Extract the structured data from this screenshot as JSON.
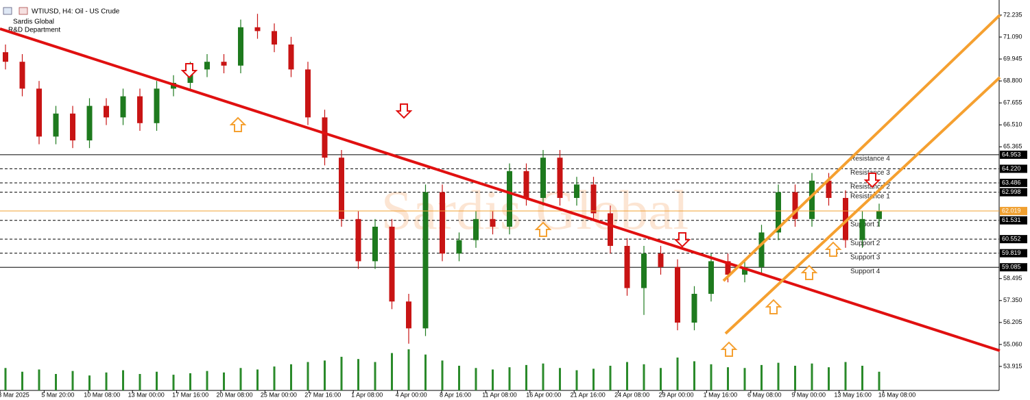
{
  "header": {
    "title": "WTIUSD, H4:  Oil - US Crude",
    "company": "Sardis Global",
    "department": "R&D Department",
    "watermark": "Sardis Global"
  },
  "chart_data": {
    "type": "candlestick",
    "open": [
      70.3,
      69.8,
      68.4,
      65.9,
      67.1,
      65.7,
      67.5,
      66.9,
      68.0,
      66.6,
      68.4,
      68.7,
      69.4,
      69.8,
      69.6,
      71.6,
      71.4,
      70.7,
      69.4,
      66.9,
      64.8,
      61.6,
      59.4,
      61.2,
      57.3,
      55.9,
      63.0,
      59.8,
      60.5,
      61.6,
      61.2,
      64.1,
      62.7,
      64.8,
      62.7,
      63.4,
      61.9,
      60.2,
      58.0,
      59.8,
      59.1,
      56.2,
      57.7,
      59.4,
      58.7,
      59.1,
      60.9,
      63.0,
      61.6,
      63.6,
      62.7,
      60.5,
      61.6
    ],
    "high": [
      70.7,
      70.2,
      68.8,
      67.5,
      67.5,
      67.9,
      67.9,
      68.4,
      68.4,
      68.8,
      69.1,
      69.8,
      70.2,
      70.2,
      72.0,
      72.3,
      71.8,
      71.1,
      69.8,
      67.3,
      65.2,
      62.0,
      61.6,
      61.6,
      57.7,
      63.4,
      63.4,
      60.9,
      62.0,
      62.0,
      64.5,
      64.5,
      65.2,
      65.2,
      63.8,
      63.8,
      62.3,
      60.6,
      60.2,
      60.2,
      59.5,
      58.1,
      59.8,
      59.8,
      59.5,
      61.3,
      63.4,
      63.4,
      64.0,
      64.0,
      63.1,
      62.0,
      62.4
    ],
    "low": [
      69.4,
      68.0,
      65.5,
      65.5,
      65.3,
      65.3,
      66.5,
      66.5,
      66.2,
      66.2,
      68.0,
      68.3,
      69.0,
      69.2,
      69.2,
      71.0,
      70.3,
      69.0,
      66.5,
      64.4,
      61.2,
      59.0,
      59.0,
      56.9,
      55.1,
      55.5,
      59.4,
      59.4,
      60.1,
      60.8,
      60.8,
      62.3,
      62.3,
      62.3,
      62.3,
      61.5,
      59.8,
      57.6,
      56.6,
      58.7,
      55.8,
      55.8,
      57.3,
      58.3,
      58.3,
      58.7,
      60.5,
      61.2,
      61.2,
      62.3,
      60.1,
      60.1,
      61.2
    ],
    "close": [
      69.8,
      68.4,
      65.9,
      67.1,
      65.7,
      67.5,
      66.9,
      68.0,
      66.6,
      68.4,
      68.7,
      69.4,
      69.8,
      69.6,
      71.6,
      71.4,
      70.7,
      69.4,
      66.9,
      64.8,
      61.6,
      59.4,
      61.2,
      57.3,
      55.9,
      63.0,
      59.8,
      60.5,
      61.6,
      61.2,
      64.1,
      62.7,
      64.8,
      62.7,
      63.4,
      61.9,
      60.2,
      58.0,
      59.8,
      59.1,
      56.2,
      57.7,
      59.4,
      58.7,
      59.1,
      60.9,
      63.0,
      61.6,
      63.6,
      62.7,
      60.5,
      61.6,
      62.0
    ],
    "volume": [
      30,
      25,
      28,
      22,
      26,
      20,
      24,
      27,
      22,
      25,
      21,
      23,
      26,
      24,
      30,
      28,
      32,
      35,
      38,
      40,
      45,
      42,
      38,
      50,
      55,
      48,
      40,
      33,
      30,
      28,
      31,
      34,
      36,
      30,
      27,
      29,
      33,
      38,
      35,
      30,
      44,
      39,
      35,
      31,
      30,
      34,
      37,
      33,
      36,
      31,
      38,
      33,
      25
    ],
    "ylim": [
      52.664,
      73.021
    ],
    "yticks": [
      72.235,
      {
        "value": 71.09,
        "label": "71.090"
      },
      69.945,
      {
        "value": 68.8,
        "label": "68.800"
      },
      67.655,
      {
        "value": 66.51,
        "label": "66.510"
      },
      65.365,
      58.495,
      {
        "value": 57.35,
        "label": "57.350"
      },
      56.205,
      {
        "value": 55.06,
        "label": "55.060"
      },
      53.915
    ],
    "xlabels": [
      "3 Mar 2025",
      "5 Mar 20:00",
      "10 Mar 08:00",
      "13 Mar 00:00",
      "17 Mar 16:00",
      "20 Mar 08:00",
      "25 Mar 00:00",
      "27 Mar 16:00",
      "1 Apr 08:00",
      "4 Apr 00:00",
      "8 Apr 16:00",
      "11 Apr 08:00",
      "16 Apr 00:00",
      "21 Apr 16:00",
      "24 Apr 08:00",
      "29 Apr 00:00",
      "1 May 16:00",
      "6 May 08:00",
      "9 May 00:00",
      "13 May 16:00",
      "16 May 08:00"
    ],
    "levels": [
      {
        "name": "Resistance 4",
        "value": 64.953,
        "style": "solid"
      },
      {
        "name": "Resistance 3",
        "value": 64.22,
        "label": "64.220",
        "style": "dashed"
      },
      {
        "name": "Resistance 2",
        "value": 63.486,
        "style": "dashed"
      },
      {
        "name": "Resistance 1",
        "value": 62.998,
        "style": "dashed"
      },
      {
        "name": "Support 1",
        "value": 61.531,
        "style": "dashed"
      },
      {
        "name": "Support 2",
        "value": 60.552,
        "style": "dashed"
      },
      {
        "name": "Support 3",
        "value": 59.819,
        "style": "dashed"
      },
      {
        "name": "Support 4",
        "value": 59.085,
        "style": "solid"
      }
    ],
    "price": 62.019,
    "up_color": "#1e7a1e",
    "down_color": "#c81414",
    "price_color": "#f0a030",
    "grid": false
  }
}
